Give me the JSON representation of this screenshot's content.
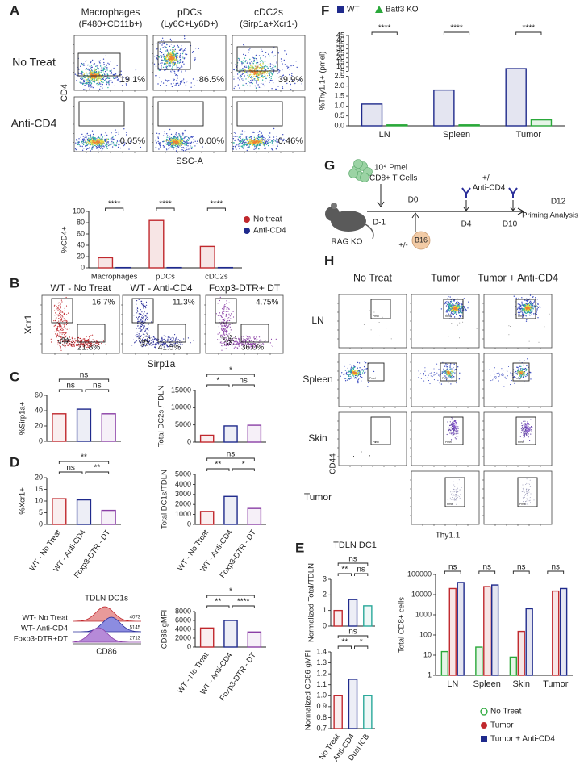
{
  "panel_labels": [
    "A",
    "B",
    "C",
    "D",
    "E",
    "F",
    "G",
    "H"
  ],
  "flow_A": {
    "columns": [
      {
        "name": "Macrophages",
        "gate": "(F480+CD11b+)"
      },
      {
        "name": "pDCs",
        "gate": "(Ly6C+Ly6D+)"
      },
      {
        "name": "cDC2s",
        "gate": "(Sirp1a+Xcr1-)"
      }
    ],
    "rows": [
      "No Treat",
      "Anti-CD4"
    ],
    "percents": [
      [
        "19.1%",
        "86.5%",
        "39.9%"
      ],
      [
        "0.05%",
        "0.00%",
        "0.46%"
      ]
    ],
    "ylabel": "CD4",
    "xlabel": "SSC-A"
  },
  "flow_B": {
    "columns": [
      "WT - No Treat",
      "WT - Anti-CD4",
      "Foxp3-DTR+ DT"
    ],
    "percents": [
      [
        "16.7%",
        "21.8%"
      ],
      [
        "11.3%",
        "41.5%"
      ],
      [
        "4.75%",
        "36.0%"
      ]
    ],
    "ylabel": "Xcr1",
    "xlabel": "Sirp1a"
  },
  "histogram_D": {
    "title": "TDLN DC1s",
    "rows": [
      {
        "label": "WT- No Treat",
        "value": "4073"
      },
      {
        "label": "WT- Anti-CD4",
        "value": "5145"
      },
      {
        "label": "Foxp3-DTR+DT",
        "value": "2713"
      }
    ],
    "xlabel": "CD86"
  },
  "panel_E": {
    "title": "TDLN DC1"
  },
  "diagram_G": {
    "cells": "10⁴ Pmel",
    "cells_type": "CD8+ T Cells",
    "mouse": "RAG KO",
    "tumor_option": "+/-",
    "tumor": "B16",
    "treatment_option": "+/-",
    "treatment": "Anti-CD4",
    "days": [
      "D-1",
      "D0",
      "D4",
      "D10",
      "D12"
    ],
    "endpoint": "Priming Analysis"
  },
  "flow_H": {
    "columns": [
      "No Treat",
      "Tumor",
      "Tumor + Anti-CD4"
    ],
    "rows": [
      "LN",
      "Spleen",
      "Skin",
      "Tumor"
    ],
    "gate_label": "Pmel",
    "ylabel": "CD44",
    "xlabel": "Thy1.1"
  },
  "chart_data": [
    {
      "type": "bar",
      "categories": [
        "Macrophages",
        "pDCs",
        "cDC2s"
      ],
      "series": [
        {
          "name": "No treat",
          "color": "#c0282d",
          "values": [
            18,
            84,
            38
          ]
        },
        {
          "name": "Anti-CD4",
          "color": "#1f2a8c",
          "values": [
            0.5,
            0.5,
            0.5
          ]
        }
      ],
      "ylabel": "%CD4+",
      "ylim": [
        0,
        100
      ],
      "yticks": [
        0,
        20,
        40,
        60,
        80,
        100
      ],
      "annotations": [
        "****",
        "****",
        "****"
      ]
    },
    {
      "type": "bar",
      "values": [
        36,
        42,
        36
      ],
      "colors": [
        "#c0282d",
        "#1f2a8c",
        "#8a3fa6"
      ],
      "ylabel": "%Sirp1a+",
      "ylim": [
        0,
        60
      ],
      "yticks": [
        0,
        20,
        40,
        60
      ],
      "annotations": [
        "ns",
        "ns",
        "ns"
      ]
    },
    {
      "type": "bar",
      "values": [
        2000,
        4700,
        4900
      ],
      "colors": [
        "#c0282d",
        "#1f2a8c",
        "#8a3fa6"
      ],
      "ylabel": "Total DC2s /TDLN",
      "ylim": [
        0,
        15000
      ],
      "yticks": [
        0,
        5000,
        10000,
        15000
      ],
      "annotations": [
        "*",
        "*",
        "ns"
      ]
    },
    {
      "type": "bar",
      "categories": [
        "WT - No Treat",
        "WT - Anti-CD4",
        "Foxp3-DTR - DT"
      ],
      "values": [
        11,
        10.5,
        6
      ],
      "colors": [
        "#c0282d",
        "#1f2a8c",
        "#8a3fa6"
      ],
      "ylabel": "%Xcr1+",
      "ylim": [
        0,
        20
      ],
      "yticks": [
        0,
        5,
        10,
        15,
        20
      ],
      "annotations": [
        "**",
        "ns",
        "**"
      ]
    },
    {
      "type": "bar",
      "categories": [
        "WT - No Treat",
        "WT - Anti-CD4",
        "Foxp3-DTR - DT"
      ],
      "values": [
        1300,
        2800,
        1600
      ],
      "colors": [
        "#c0282d",
        "#1f2a8c",
        "#8a3fa6"
      ],
      "ylabel": "Total DC1s/TDLN",
      "ylim": [
        0,
        5000
      ],
      "yticks": [
        0,
        1000,
        2000,
        3000,
        4000,
        5000
      ],
      "annotations": [
        "ns",
        "**",
        "*"
      ]
    },
    {
      "type": "bar",
      "categories": [
        "WT - No Treat",
        "WT - Anti-CD4",
        "Foxp3-DTR - DT"
      ],
      "values": [
        4300,
        6000,
        3400
      ],
      "colors": [
        "#c0282d",
        "#1f2a8c",
        "#8a3fa6"
      ],
      "ylabel": "CD86 gMFI",
      "ylim": [
        0,
        8000
      ],
      "yticks": [
        0,
        2000,
        4000,
        6000,
        8000
      ],
      "annotations": [
        "*",
        "**",
        "****"
      ]
    },
    {
      "type": "bar",
      "categories": [
        "LN",
        "Spleen",
        "Tumor"
      ],
      "series": [
        {
          "name": "WT",
          "color": "#1f2a8c",
          "values": [
            1.1,
            1.8,
            8
          ]
        },
        {
          "name": "Batf3 KO",
          "color": "#2aa83a",
          "values": [
            0.05,
            0.05,
            0.3
          ]
        }
      ],
      "ylabel": "%Thy1.1+ (pmel)",
      "ylim": [
        0,
        45
      ],
      "axis_break": [
        2.5,
        5
      ],
      "yticks": [
        {
          "value": 0,
          "label": "0.0"
        },
        0.5,
        {
          "value": 1,
          "label": "1.0"
        },
        1.5,
        {
          "value": 2,
          "label": "2.0"
        },
        2.5,
        5,
        10,
        15,
        20,
        25,
        30,
        35,
        40,
        45
      ],
      "annotations": [
        "****",
        "****",
        "****"
      ]
    },
    {
      "type": "bar",
      "values": [
        1.0,
        1.7,
        1.3
      ],
      "colors": [
        "#c0282d",
        "#1f2a8c",
        "#2aa89a"
      ],
      "ylabel": "Normalized Total/TDLN",
      "ylim": [
        0,
        3
      ],
      "yticks": [
        0,
        1,
        2,
        3
      ],
      "annotations": [
        "ns",
        "**",
        "ns"
      ]
    },
    {
      "type": "bar",
      "categories": [
        "No Treat",
        "Anti-CD4",
        "Dual ICB"
      ],
      "values": [
        1.0,
        1.15,
        1.0
      ],
      "colors": [
        "#c0282d",
        "#1f2a8c",
        "#2aa89a"
      ],
      "ylabel": "Normalized CD86 gMFI",
      "ylim": [
        0.7,
        1.4
      ],
      "yticks": [
        0.7,
        0.8,
        0.9,
        {
          "value": 1,
          "label": "1.0"
        },
        1.1,
        1.2,
        1.3,
        1.4
      ],
      "annotations": [
        "ns",
        "**",
        "*"
      ]
    },
    {
      "type": "bar",
      "categories": [
        "LN",
        "Spleen",
        "Skin",
        "Tumor"
      ],
      "series": [
        {
          "name": "No Treat",
          "color": "#2aa83a",
          "values": [
            15,
            25,
            8,
            null
          ]
        },
        {
          "name": "Tumor",
          "color": "#c0282d",
          "values": [
            20000,
            25000,
            150,
            15000
          ]
        },
        {
          "name": "Tumor + Anti-CD4",
          "color": "#1f2a8c",
          "values": [
            40000,
            30000,
            2000,
            20000
          ]
        }
      ],
      "ylabel": "Total CD8+ cells",
      "ylim": [
        1,
        100000
      ],
      "log": true,
      "yticks": [
        1,
        10,
        100,
        1000,
        10000,
        100000
      ],
      "annotations": [
        "ns",
        "ns",
        "ns",
        "ns"
      ]
    }
  ]
}
